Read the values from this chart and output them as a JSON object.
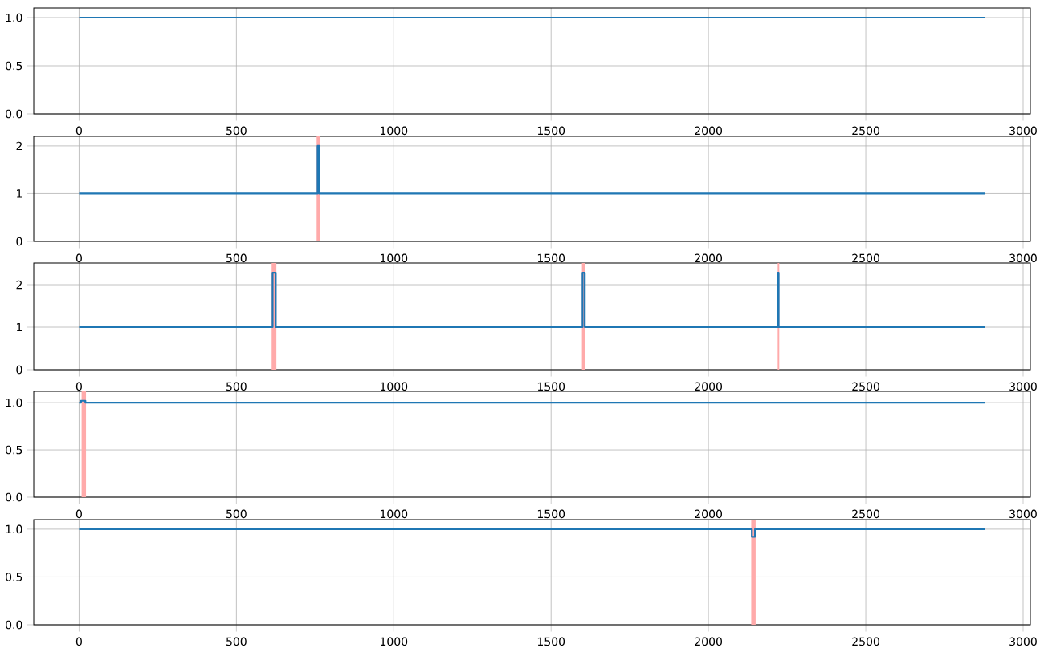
{
  "chart_data": [
    {
      "type": "line",
      "xlim": [
        -144,
        3023
      ],
      "ylim": [
        0,
        1.1
      ],
      "xticks": [
        0,
        500,
        1000,
        1500,
        2000,
        2500,
        3000
      ],
      "yticks": [
        {
          "value": 0,
          "label": "0.0"
        },
        {
          "value": 0.5,
          "label": "0.5"
        },
        {
          "value": 1,
          "label": "1.0"
        }
      ],
      "grid": true,
      "series": [
        {
          "color": "#1f77b4",
          "x": [
            0,
            2879
          ],
          "values": [
            1,
            1
          ]
        }
      ]
    },
    {
      "type": "line",
      "xlim": [
        -144,
        3023
      ],
      "ylim": [
        0,
        2.2
      ],
      "xticks": [
        0,
        500,
        1000,
        1500,
        2000,
        2500,
        3000
      ],
      "yticks": [
        0,
        1,
        2
      ],
      "grid": true,
      "bands": [
        {
          "axis": "x",
          "from": 755,
          "to": 765,
          "color": "#ffaaaa"
        }
      ],
      "series": [
        {
          "color": "#1f77b4",
          "x": [
            0,
            758,
            758,
            763,
            763,
            2879
          ],
          "values": [
            1,
            1,
            2,
            2,
            1,
            1
          ]
        }
      ]
    },
    {
      "type": "line",
      "xlim": [
        -144,
        3023
      ],
      "ylim": [
        0,
        2.51
      ],
      "xticks": [
        0,
        500,
        1000,
        1500,
        2000,
        2500,
        3000
      ],
      "yticks": [
        0,
        1,
        2
      ],
      "grid": true,
      "bands": [
        {
          "axis": "x",
          "from": 612,
          "to": 627,
          "color": "#ffaaaa"
        },
        {
          "axis": "x",
          "from": 1598,
          "to": 1609,
          "color": "#ffaaaa"
        },
        {
          "axis": "x",
          "from": 2220,
          "to": 2225,
          "color": "#ffaaaa"
        }
      ],
      "series": [
        {
          "color": "#1f77b4",
          "x": [
            0,
            615,
            615,
            625,
            625,
            1600,
            1600,
            1607,
            1607,
            2221,
            2221,
            2223,
            2223,
            2879
          ],
          "values": [
            1,
            1,
            2.28,
            2.28,
            1,
            1,
            2.28,
            2.28,
            1,
            1,
            2.28,
            2.28,
            1,
            1
          ]
        }
      ]
    },
    {
      "type": "line",
      "xlim": [
        -144,
        3023
      ],
      "ylim": [
        0,
        1.12
      ],
      "xticks": [
        0,
        500,
        1000,
        1500,
        2000,
        2500,
        3000
      ],
      "yticks": [
        {
          "value": 0,
          "label": "0.0"
        },
        {
          "value": 0.5,
          "label": "0.5"
        },
        {
          "value": 1,
          "label": "1.0"
        }
      ],
      "grid": true,
      "bands": [
        {
          "axis": "x",
          "from": 8,
          "to": 22,
          "color": "#ffaaaa"
        }
      ],
      "series": [
        {
          "color": "#1f77b4",
          "x": [
            0,
            6,
            6,
            20,
            20,
            2879
          ],
          "values": [
            1,
            1,
            1.02,
            1.02,
            1,
            1
          ]
        }
      ]
    },
    {
      "type": "line",
      "xlim": [
        -144,
        3023
      ],
      "ylim": [
        0,
        1.1
      ],
      "xticks": [
        0,
        500,
        1000,
        1500,
        2000,
        2500,
        3000
      ],
      "yticks": [
        {
          "value": 0,
          "label": "0.0"
        },
        {
          "value": 0.5,
          "label": "0.5"
        },
        {
          "value": 1,
          "label": "1.0"
        }
      ],
      "grid": true,
      "bands": [
        {
          "axis": "x",
          "from": 2136,
          "to": 2150,
          "color": "#ffaaaa"
        }
      ],
      "series": [
        {
          "color": "#1f77b4",
          "x": [
            0,
            2138,
            2138,
            2148,
            2148,
            2879
          ],
          "values": [
            1,
            1,
            0.92,
            0.92,
            1,
            1
          ]
        }
      ]
    }
  ]
}
